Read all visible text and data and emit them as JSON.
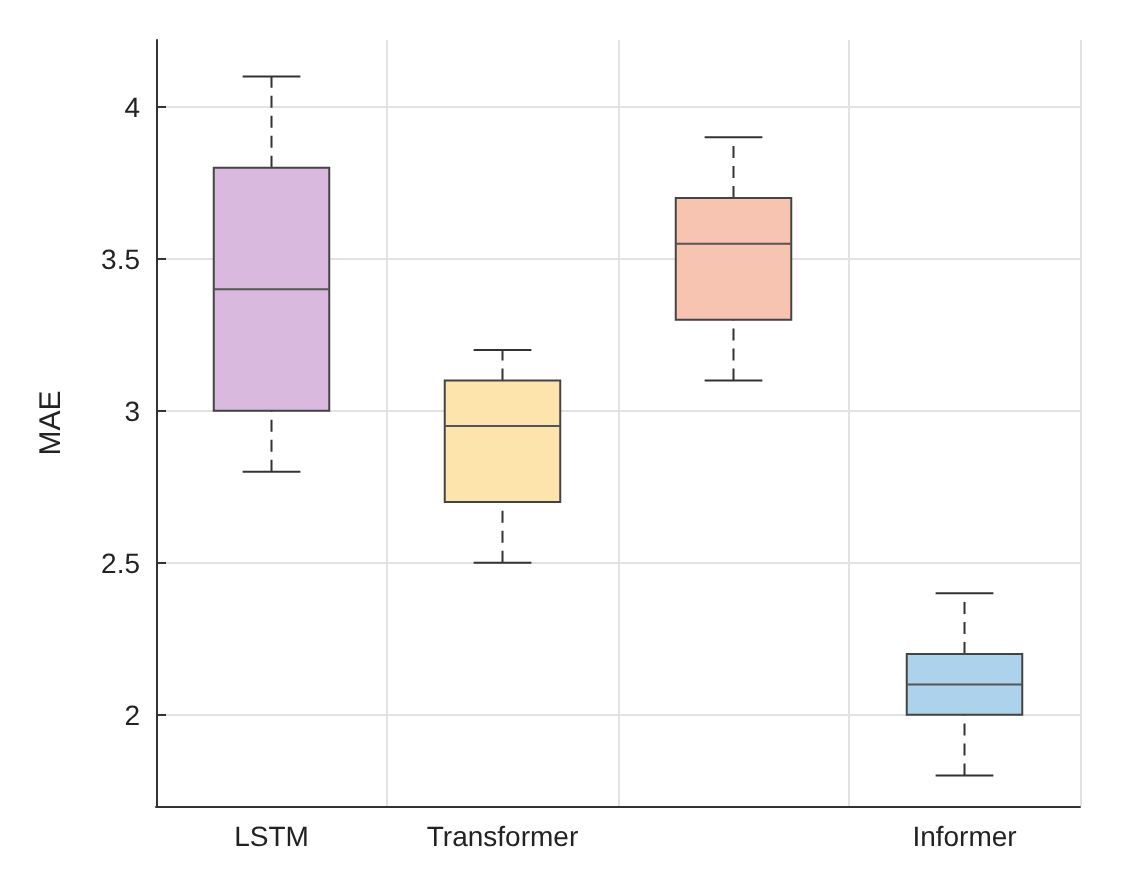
{
  "chart_data": {
    "type": "box",
    "ylabel": "MAE",
    "categories": [
      "LSTM",
      "Transformer",
      null,
      "Informer"
    ],
    "boxes": [
      {
        "low": 2.8,
        "q1": 3.0,
        "median": 3.4,
        "q3": 3.8,
        "high": 4.1
      },
      {
        "low": 2.5,
        "q1": 2.7,
        "median": 2.95,
        "q3": 3.1,
        "high": 3.2
      },
      {
        "low": 3.1,
        "q1": 3.3,
        "median": 3.55,
        "q3": 3.7,
        "high": 3.9
      },
      {
        "low": 1.8,
        "q1": 2.0,
        "median": 2.1,
        "q3": 2.2,
        "high": 2.4
      }
    ],
    "colors": [
      "#d9bade",
      "#fde4ad",
      "#f6c4b0",
      "#acd2ec"
    ],
    "ylim": [
      1.7,
      4.22
    ],
    "yticks": [
      2,
      2.5,
      3,
      3.5,
      4
    ],
    "grid": true,
    "line_style": "dashed"
  }
}
